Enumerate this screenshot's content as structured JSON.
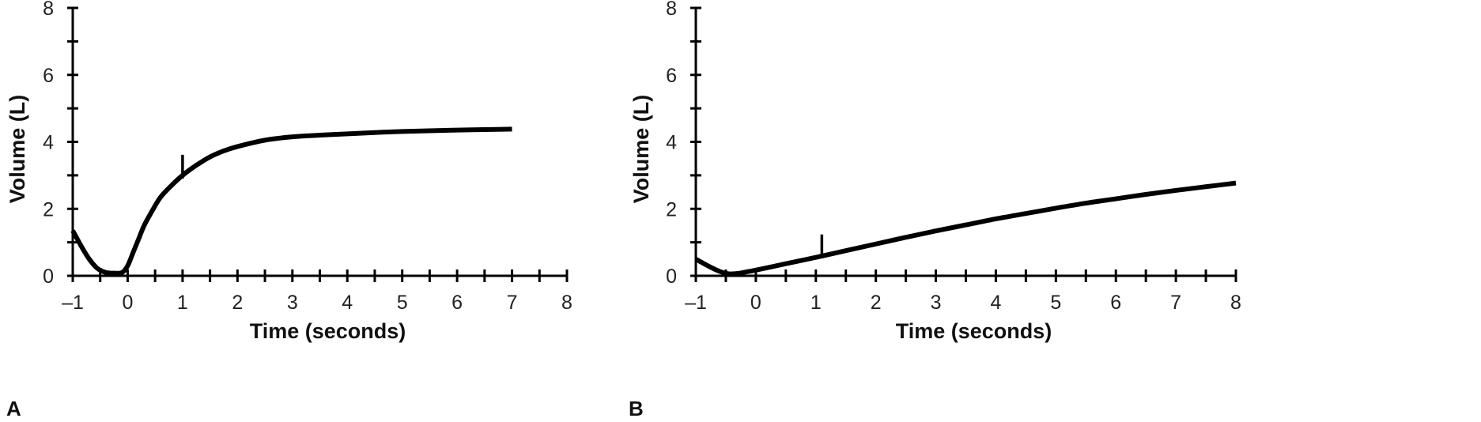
{
  "chart_data": [
    {
      "panel_label": "A",
      "type": "line",
      "xlabel": "Time (seconds)",
      "ylabel": "Volume (L)",
      "xlim": [
        -1,
        8
      ],
      "ylim": [
        0,
        8
      ],
      "x_ticks": [
        "–1",
        "0",
        "1",
        "2",
        "3",
        "4",
        "5",
        "6",
        "7",
        "8"
      ],
      "y_ticks": [
        "0",
        "2",
        "4",
        "6",
        "8"
      ],
      "series": [
        {
          "x": [
            -1,
            -0.85,
            -0.7,
            -0.55,
            -0.4,
            -0.25,
            -0.1,
            0,
            0.1,
            0.2,
            0.3,
            0.45,
            0.6,
            0.8,
            1.0,
            1.25,
            1.5,
            1.75,
            2.0,
            2.5,
            3.0,
            3.5,
            4.0,
            5.0,
            6.0,
            7.0
          ],
          "y": [
            1.35,
            0.9,
            0.5,
            0.22,
            0.1,
            0.08,
            0.1,
            0.3,
            0.7,
            1.1,
            1.5,
            1.95,
            2.35,
            2.7,
            3.0,
            3.3,
            3.55,
            3.73,
            3.86,
            4.05,
            4.15,
            4.2,
            4.24,
            4.31,
            4.35,
            4.38
          ]
        }
      ],
      "marker": {
        "x": 1.0,
        "y": 3.0
      },
      "color": "#000000"
    },
    {
      "panel_label": "B",
      "type": "line",
      "xlabel": "Time (seconds)",
      "ylabel": "Volume (L)",
      "xlim": [
        -1,
        8
      ],
      "ylim": [
        0,
        8
      ],
      "x_ticks": [
        "–1",
        "0",
        "1",
        "2",
        "3",
        "4",
        "5",
        "6",
        "7",
        "8"
      ],
      "y_ticks": [
        "0",
        "2",
        "4",
        "6",
        "8"
      ],
      "series": [
        {
          "x": [
            -1,
            -0.8,
            -0.6,
            -0.45,
            -0.3,
            -0.15,
            0,
            0.5,
            1.0,
            1.5,
            2.0,
            2.5,
            3.0,
            3.5,
            4.0,
            4.5,
            5.0,
            5.5,
            6.0,
            6.5,
            7.0,
            7.5,
            8.0
          ],
          "y": [
            0.5,
            0.3,
            0.13,
            0.06,
            0.07,
            0.12,
            0.17,
            0.36,
            0.55,
            0.75,
            0.95,
            1.15,
            1.34,
            1.52,
            1.7,
            1.86,
            2.02,
            2.17,
            2.3,
            2.43,
            2.55,
            2.66,
            2.77
          ]
        }
      ],
      "marker": {
        "x": 1.1,
        "y": 0.62
      },
      "color": "#000000"
    }
  ]
}
